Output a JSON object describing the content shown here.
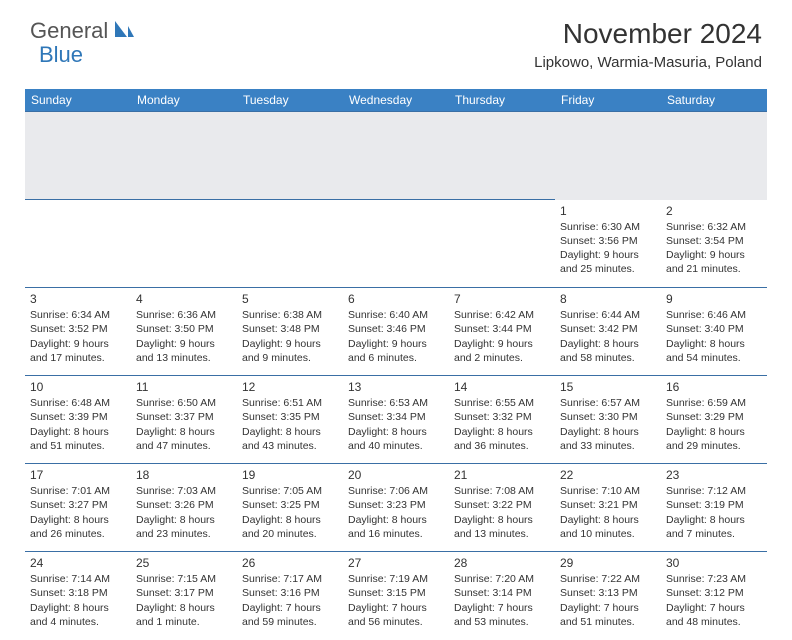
{
  "logo": {
    "text1": "General",
    "text2": "Blue"
  },
  "title": "November 2024",
  "location": "Lipkowo, Warmia-Masuria, Poland",
  "colors": {
    "header_bg": "#3a81c4",
    "header_fg": "#ffffff",
    "subhead_bg": "#e9eaed",
    "cell_border": "#3a6fa5",
    "text": "#333333",
    "logo_gray": "#555555",
    "logo_blue": "#2f77b8"
  },
  "dayNames": [
    "Sunday",
    "Monday",
    "Tuesday",
    "Wednesday",
    "Thursday",
    "Friday",
    "Saturday"
  ],
  "weeks": [
    [
      null,
      null,
      null,
      null,
      null,
      {
        "n": "1",
        "sr": "6:30 AM",
        "ss": "3:56 PM",
        "dl": "9 hours and 25 minutes."
      },
      {
        "n": "2",
        "sr": "6:32 AM",
        "ss": "3:54 PM",
        "dl": "9 hours and 21 minutes."
      }
    ],
    [
      {
        "n": "3",
        "sr": "6:34 AM",
        "ss": "3:52 PM",
        "dl": "9 hours and 17 minutes."
      },
      {
        "n": "4",
        "sr": "6:36 AM",
        "ss": "3:50 PM",
        "dl": "9 hours and 13 minutes."
      },
      {
        "n": "5",
        "sr": "6:38 AM",
        "ss": "3:48 PM",
        "dl": "9 hours and 9 minutes."
      },
      {
        "n": "6",
        "sr": "6:40 AM",
        "ss": "3:46 PM",
        "dl": "9 hours and 6 minutes."
      },
      {
        "n": "7",
        "sr": "6:42 AM",
        "ss": "3:44 PM",
        "dl": "9 hours and 2 minutes."
      },
      {
        "n": "8",
        "sr": "6:44 AM",
        "ss": "3:42 PM",
        "dl": "8 hours and 58 minutes."
      },
      {
        "n": "9",
        "sr": "6:46 AM",
        "ss": "3:40 PM",
        "dl": "8 hours and 54 minutes."
      }
    ],
    [
      {
        "n": "10",
        "sr": "6:48 AM",
        "ss": "3:39 PM",
        "dl": "8 hours and 51 minutes."
      },
      {
        "n": "11",
        "sr": "6:50 AM",
        "ss": "3:37 PM",
        "dl": "8 hours and 47 minutes."
      },
      {
        "n": "12",
        "sr": "6:51 AM",
        "ss": "3:35 PM",
        "dl": "8 hours and 43 minutes."
      },
      {
        "n": "13",
        "sr": "6:53 AM",
        "ss": "3:34 PM",
        "dl": "8 hours and 40 minutes."
      },
      {
        "n": "14",
        "sr": "6:55 AM",
        "ss": "3:32 PM",
        "dl": "8 hours and 36 minutes."
      },
      {
        "n": "15",
        "sr": "6:57 AM",
        "ss": "3:30 PM",
        "dl": "8 hours and 33 minutes."
      },
      {
        "n": "16",
        "sr": "6:59 AM",
        "ss": "3:29 PM",
        "dl": "8 hours and 29 minutes."
      }
    ],
    [
      {
        "n": "17",
        "sr": "7:01 AM",
        "ss": "3:27 PM",
        "dl": "8 hours and 26 minutes."
      },
      {
        "n": "18",
        "sr": "7:03 AM",
        "ss": "3:26 PM",
        "dl": "8 hours and 23 minutes."
      },
      {
        "n": "19",
        "sr": "7:05 AM",
        "ss": "3:25 PM",
        "dl": "8 hours and 20 minutes."
      },
      {
        "n": "20",
        "sr": "7:06 AM",
        "ss": "3:23 PM",
        "dl": "8 hours and 16 minutes."
      },
      {
        "n": "21",
        "sr": "7:08 AM",
        "ss": "3:22 PM",
        "dl": "8 hours and 13 minutes."
      },
      {
        "n": "22",
        "sr": "7:10 AM",
        "ss": "3:21 PM",
        "dl": "8 hours and 10 minutes."
      },
      {
        "n": "23",
        "sr": "7:12 AM",
        "ss": "3:19 PM",
        "dl": "8 hours and 7 minutes."
      }
    ],
    [
      {
        "n": "24",
        "sr": "7:14 AM",
        "ss": "3:18 PM",
        "dl": "8 hours and 4 minutes."
      },
      {
        "n": "25",
        "sr": "7:15 AM",
        "ss": "3:17 PM",
        "dl": "8 hours and 1 minute."
      },
      {
        "n": "26",
        "sr": "7:17 AM",
        "ss": "3:16 PM",
        "dl": "7 hours and 59 minutes."
      },
      {
        "n": "27",
        "sr": "7:19 AM",
        "ss": "3:15 PM",
        "dl": "7 hours and 56 minutes."
      },
      {
        "n": "28",
        "sr": "7:20 AM",
        "ss": "3:14 PM",
        "dl": "7 hours and 53 minutes."
      },
      {
        "n": "29",
        "sr": "7:22 AM",
        "ss": "3:13 PM",
        "dl": "7 hours and 51 minutes."
      },
      {
        "n": "30",
        "sr": "7:23 AM",
        "ss": "3:12 PM",
        "dl": "7 hours and 48 minutes."
      }
    ]
  ],
  "labels": {
    "sunrise": "Sunrise:",
    "sunset": "Sunset:",
    "daylight": "Daylight:"
  }
}
